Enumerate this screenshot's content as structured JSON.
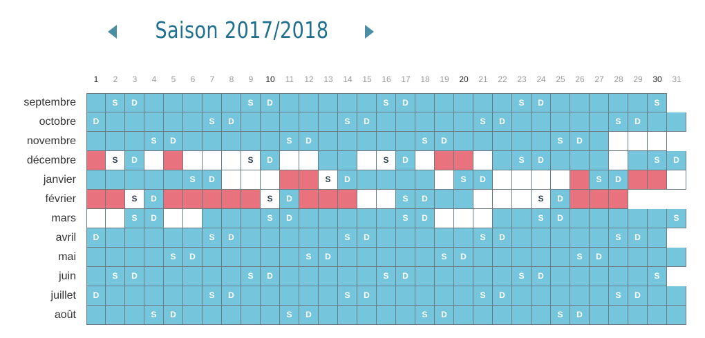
{
  "header": {
    "title": "Saison 2017/2018",
    "prev_icon": "chevron-left-icon",
    "next_icon": "chevron-right-icon"
  },
  "colors": {
    "school_day": "#75c6dc",
    "holiday": "#ffffff",
    "closure": "#e8727d",
    "title": "#1f6f8f",
    "arrow": "#4a8ea3"
  },
  "days": [
    "1",
    "2",
    "3",
    "4",
    "5",
    "6",
    "7",
    "8",
    "9",
    "10",
    "11",
    "12",
    "13",
    "14",
    "15",
    "16",
    "17",
    "18",
    "19",
    "20",
    "21",
    "22",
    "23",
    "24",
    "25",
    "26",
    "27",
    "28",
    "29",
    "30",
    "31"
  ],
  "highlighted_days": [
    "1",
    "10",
    "20",
    "30"
  ],
  "months": [
    {
      "name": "septembre",
      "cells": [
        "b",
        "bS",
        "bD",
        "b",
        "b",
        "b",
        "b",
        "b",
        "bS",
        "bD",
        "b",
        "b",
        "b",
        "b",
        "b",
        "bS",
        "bD",
        "b",
        "b",
        "b",
        "b",
        "b",
        "bS",
        "bD",
        "b",
        "b",
        "b",
        "b",
        "b",
        "bS"
      ]
    },
    {
      "name": "octobre",
      "cells": [
        "bD",
        "b",
        "b",
        "b",
        "b",
        "b",
        "bS",
        "bD",
        "b",
        "b",
        "b",
        "b",
        "b",
        "bS",
        "bD",
        "b",
        "b",
        "b",
        "b",
        "b",
        "bS",
        "bD",
        "b",
        "b",
        "b",
        "b",
        "b",
        "bS",
        "bD",
        "b",
        "b"
      ]
    },
    {
      "name": "novembre",
      "cells": [
        "b",
        "b",
        "b",
        "bS",
        "bD",
        "b",
        "b",
        "b",
        "b",
        "b",
        "bS",
        "bD",
        "b",
        "b",
        "b",
        "b",
        "b",
        "bS",
        "bD",
        "b",
        "b",
        "b",
        "b",
        "b",
        "bS",
        "bD",
        "b",
        "w",
        "w",
        "w"
      ]
    },
    {
      "name": "décembre",
      "cells": [
        "r",
        "wS",
        "bD",
        "w",
        "r",
        "w",
        "w",
        "w",
        "wS",
        "bD",
        "w",
        "w",
        "b",
        "b",
        "w",
        "wS",
        "bD",
        "w",
        "r",
        "r",
        "w",
        "b",
        "bS",
        "bD",
        "b",
        "b",
        "b",
        "w",
        "b",
        "bS",
        "bD"
      ]
    },
    {
      "name": "janvier",
      "cells": [
        "b",
        "b",
        "b",
        "b",
        "b",
        "bS",
        "bD",
        "w",
        "w",
        "w",
        "r",
        "r",
        "wS",
        "bD",
        "b",
        "b",
        "b",
        "b",
        "w",
        "bS",
        "bD",
        "w",
        "w",
        "w",
        "w",
        "r",
        "bS",
        "bD",
        "r",
        "r",
        "w"
      ]
    },
    {
      "name": "février",
      "cells": [
        "r",
        "r",
        "wS",
        "bD",
        "r",
        "r",
        "r",
        "r",
        "r",
        "wS",
        "bD",
        "r",
        "r",
        "r",
        "w",
        "w",
        "bS",
        "bD",
        "b",
        "b",
        "w",
        "w",
        "w",
        "wS",
        "bD",
        "r",
        "r",
        "r"
      ]
    },
    {
      "name": "mars",
      "cells": [
        "w",
        "w",
        "bS",
        "bD",
        "w",
        "w",
        "b",
        "b",
        "b",
        "bS",
        "bD",
        "b",
        "b",
        "b",
        "b",
        "b",
        "bS",
        "bD",
        "w",
        "w",
        "w",
        "b",
        "b",
        "bS",
        "bD",
        "b",
        "b",
        "b",
        "b",
        "b",
        "bS"
      ]
    },
    {
      "name": "avril",
      "cells": [
        "bD",
        "b",
        "b",
        "b",
        "b",
        "b",
        "bS",
        "bD",
        "b",
        "b",
        "b",
        "b",
        "b",
        "bS",
        "bD",
        "b",
        "b",
        "b",
        "b",
        "b",
        "bS",
        "bD",
        "b",
        "b",
        "b",
        "b",
        "b",
        "bS",
        "bD",
        "b"
      ]
    },
    {
      "name": "mai",
      "cells": [
        "b",
        "b",
        "b",
        "b",
        "bS",
        "bD",
        "b",
        "b",
        "b",
        "b",
        "b",
        "bS",
        "bD",
        "b",
        "b",
        "b",
        "b",
        "b",
        "bS",
        "bD",
        "b",
        "b",
        "b",
        "b",
        "b",
        "bS",
        "bD",
        "b",
        "b",
        "b",
        "b"
      ]
    },
    {
      "name": "juin",
      "cells": [
        "b",
        "bS",
        "bD",
        "b",
        "b",
        "b",
        "b",
        "b",
        "bS",
        "bD",
        "b",
        "b",
        "b",
        "b",
        "b",
        "bS",
        "bD",
        "b",
        "b",
        "b",
        "b",
        "b",
        "bS",
        "bD",
        "b",
        "b",
        "b",
        "b",
        "b",
        "bS"
      ]
    },
    {
      "name": "juillet",
      "cells": [
        "bD",
        "b",
        "b",
        "b",
        "b",
        "b",
        "bS",
        "bD",
        "b",
        "b",
        "b",
        "b",
        "b",
        "bS",
        "bD",
        "b",
        "b",
        "b",
        "b",
        "b",
        "bS",
        "bD",
        "b",
        "b",
        "b",
        "b",
        "b",
        "bS",
        "bD",
        "b",
        "b"
      ]
    },
    {
      "name": "août",
      "cells": [
        "b",
        "b",
        "b",
        "bS",
        "bD",
        "b",
        "b",
        "b",
        "b",
        "b",
        "bS",
        "bD",
        "b",
        "b",
        "b",
        "b",
        "b",
        "bS",
        "bD",
        "b",
        "b",
        "b",
        "b",
        "b",
        "bS",
        "bD",
        "b",
        "b",
        "b",
        "b",
        "b"
      ]
    }
  ]
}
